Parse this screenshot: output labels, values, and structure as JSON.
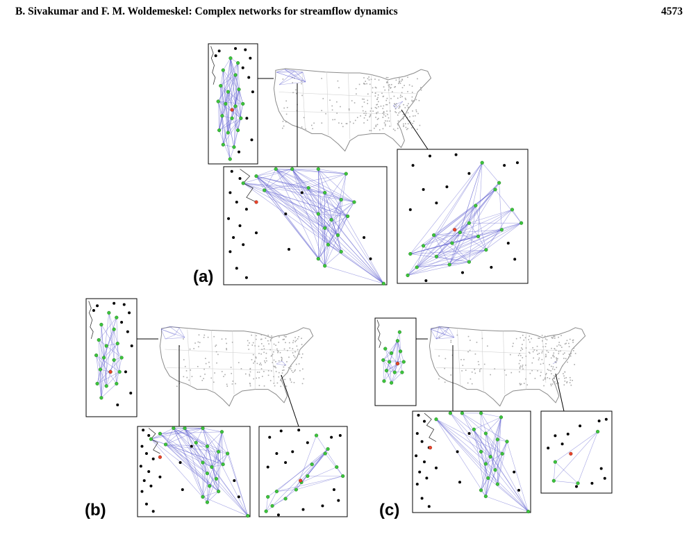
{
  "header": {
    "running_title": "B. Sivakumar and F. M. Woldemeskel: Complex networks for streamflow dynamics",
    "page_number": "4573"
  },
  "figure": {
    "panels": [
      {
        "label": "(a)"
      },
      {
        "label": "(b)"
      },
      {
        "label": "(c)"
      }
    ],
    "colors": {
      "network_link": "#5a5acd",
      "connected_station": "#3cc43c",
      "reference_station": "#e8442a",
      "unconnected_station": "#000000",
      "other_station": "#a8a8a8",
      "map_outline": "#8a8a8a"
    }
  }
}
